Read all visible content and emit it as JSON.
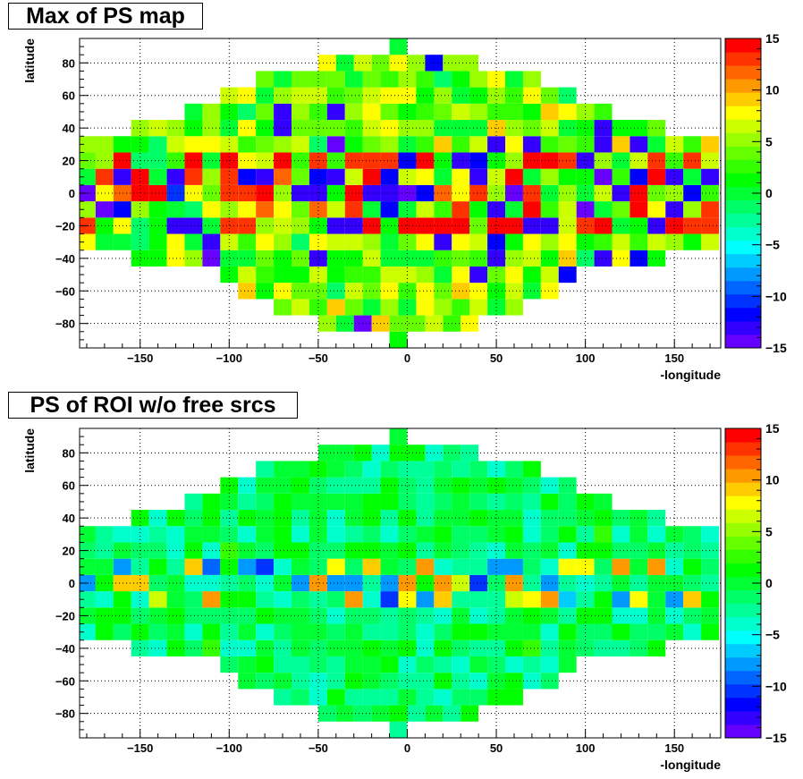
{
  "chart_data": [
    {
      "type": "heatmap",
      "title": "Max of PS map",
      "xlabel": "-longitude",
      "ylabel": "latitude",
      "xlim": [
        -184,
        176
      ],
      "ylim": [
        -95,
        95
      ],
      "zlim": [
        -15,
        15
      ],
      "xticks": [
        -150,
        -100,
        -50,
        0,
        50,
        100,
        150
      ],
      "yticks": [
        -80,
        -60,
        -40,
        -20,
        0,
        20,
        40,
        60,
        80
      ],
      "zticks": [
        -15,
        -10,
        -5,
        0,
        5,
        10,
        15
      ],
      "grid": true,
      "legend_position": "right",
      "generator": "bright",
      "seed": 7
    },
    {
      "type": "heatmap",
      "title": "PS of ROI w/o free srcs",
      "xlabel": "-longitude",
      "ylabel": "latitude",
      "xlim": [
        -184,
        176
      ],
      "ylim": [
        -95,
        95
      ],
      "zlim": [
        -15,
        15
      ],
      "xticks": [
        -150,
        -100,
        -50,
        0,
        50,
        100,
        150
      ],
      "yticks": [
        -80,
        -60,
        -40,
        -20,
        0,
        20,
        40,
        60,
        80
      ],
      "zticks": [
        -15,
        -10,
        -5,
        0,
        5,
        10,
        15
      ],
      "grid": true,
      "legend_position": "right",
      "generator": "muted",
      "seed": 23
    }
  ]
}
